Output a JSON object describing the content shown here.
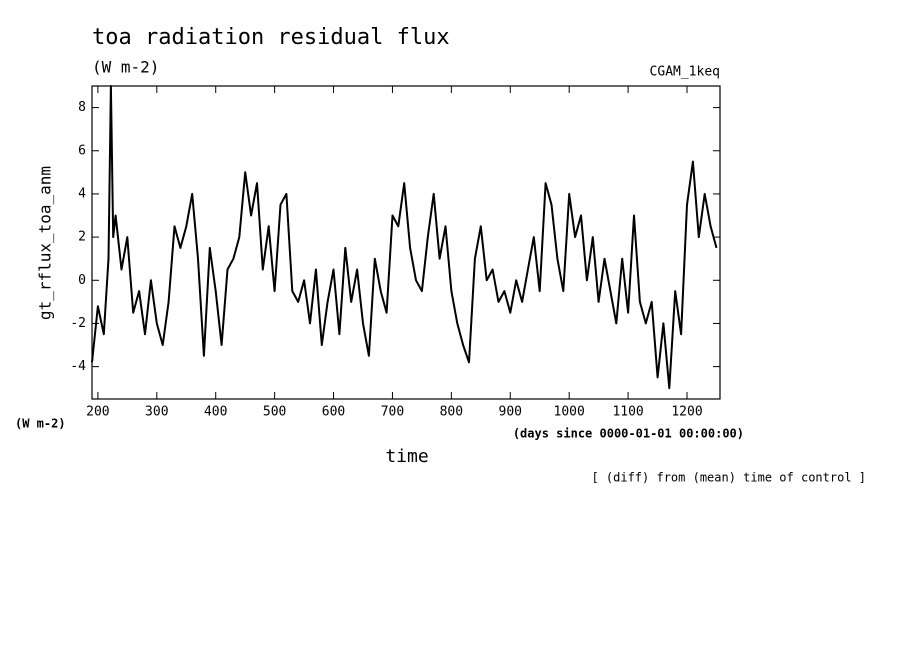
{
  "chart_data": {
    "type": "line",
    "title": "toa radiation residual flux",
    "subtitle": "(W m-2)",
    "experiment": "CGAM_1keq",
    "y_label": "gt_rflux_toa_anm",
    "y_units": "(W m-2)",
    "x_label": "time",
    "x_units": "(days since 0000-01-01 00:00:00)",
    "footnote": "[ (diff) from (mean) time of control ]",
    "xlim": [
      190,
      1256
    ],
    "ylim": [
      -5.5,
      9
    ],
    "xticks": [
      200,
      300,
      400,
      500,
      600,
      700,
      800,
      900,
      1000,
      1100,
      1200
    ],
    "yticks": [
      -4,
      -2,
      0,
      2,
      4,
      6,
      8
    ],
    "x": [
      190,
      200,
      210,
      218,
      222,
      226,
      230,
      240,
      250,
      260,
      270,
      280,
      290,
      300,
      310,
      320,
      330,
      340,
      350,
      360,
      370,
      380,
      390,
      400,
      410,
      420,
      430,
      440,
      450,
      460,
      470,
      480,
      490,
      500,
      510,
      520,
      530,
      540,
      550,
      560,
      570,
      580,
      590,
      600,
      610,
      620,
      630,
      640,
      650,
      660,
      670,
      680,
      690,
      700,
      710,
      720,
      730,
      740,
      750,
      760,
      770,
      780,
      790,
      800,
      810,
      820,
      830,
      840,
      850,
      860,
      870,
      880,
      890,
      900,
      910,
      920,
      930,
      940,
      950,
      960,
      970,
      980,
      990,
      1000,
      1010,
      1020,
      1030,
      1040,
      1050,
      1060,
      1070,
      1080,
      1090,
      1100,
      1110,
      1120,
      1130,
      1140,
      1150,
      1160,
      1170,
      1180,
      1190,
      1200,
      1210,
      1220,
      1230,
      1240,
      1250
    ],
    "series": [
      {
        "name": "gt_rflux_toa_anm",
        "color": "#000000",
        "values": [
          -3.8,
          -1.2,
          -2.5,
          1.0,
          9.0,
          2.0,
          3.0,
          0.5,
          2.0,
          -1.5,
          -0.5,
          -2.5,
          0.0,
          -2.0,
          -3.0,
          -1.0,
          2.5,
          1.5,
          2.5,
          4.0,
          1.0,
          -3.5,
          1.5,
          -0.5,
          -3.0,
          0.5,
          1.0,
          2.0,
          5.0,
          3.0,
          4.5,
          0.5,
          2.5,
          -0.5,
          3.5,
          4.0,
          -0.5,
          -1.0,
          0.0,
          -2.0,
          0.5,
          -3.0,
          -1.0,
          0.5,
          -2.5,
          1.5,
          -1.0,
          0.5,
          -2.0,
          -3.5,
          1.0,
          -0.5,
          -1.5,
          3.0,
          2.5,
          4.5,
          1.5,
          0.0,
          -0.5,
          2.0,
          4.0,
          1.0,
          2.5,
          -0.5,
          -2.0,
          -3.0,
          -3.8,
          1.0,
          2.5,
          0.0,
          0.5,
          -1.0,
          -0.5,
          -1.5,
          0.0,
          -1.0,
          0.5,
          2.0,
          -0.5,
          4.5,
          3.5,
          1.0,
          -0.5,
          4.0,
          2.0,
          3.0,
          0.0,
          2.0,
          -1.0,
          1.0,
          -0.5,
          -2.0,
          1.0,
          -1.5,
          3.0,
          -1.0,
          -2.0,
          -1.0,
          -4.5,
          -2.0,
          -5.0,
          -0.5,
          -2.5,
          3.5,
          5.5,
          2.0,
          4.0,
          2.5,
          1.5
        ]
      }
    ]
  }
}
